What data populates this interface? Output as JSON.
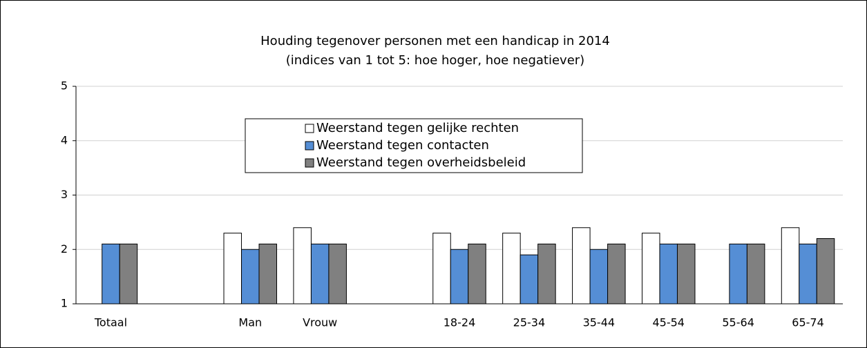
{
  "chart_data": {
    "type": "bar",
    "title": "Houding tegenover personen met een handicap in 2014",
    "subtitle": "(indices van 1 tot 5: hoe hoger, hoe negatiever)",
    "categories": [
      "Totaal",
      null,
      "Man",
      "Vrouw",
      null,
      "18-24",
      "25-34",
      "35-44",
      "45-54",
      "55-64",
      "65-74"
    ],
    "series": [
      {
        "name": "Weerstand tegen gelijke rechten",
        "color": "#ffffff",
        "values": [
          1,
          null,
          2.3,
          2.4,
          null,
          2.3,
          2.3,
          2.4,
          2.3,
          1,
          2.4
        ]
      },
      {
        "name": "Weerstand tegen contacten",
        "color": "#558ed5",
        "values": [
          2.1,
          null,
          2.0,
          2.1,
          null,
          2.0,
          1.9,
          2.0,
          2.1,
          2.1,
          2.1
        ]
      },
      {
        "name": "Weerstand tegen overheidsbeleid",
        "color": "#808080",
        "values": [
          2.1,
          null,
          2.1,
          2.1,
          null,
          2.1,
          2.1,
          2.1,
          2.1,
          2.1,
          2.2
        ]
      }
    ],
    "ylim": [
      1,
      5
    ],
    "yticks": [
      1,
      2,
      3,
      4,
      5
    ],
    "grid": true
  }
}
